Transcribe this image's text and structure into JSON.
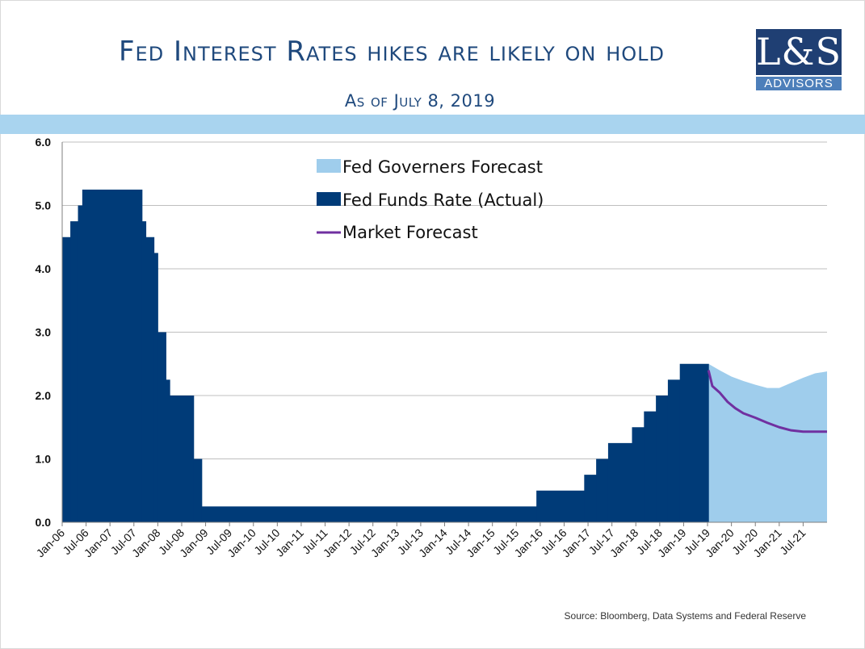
{
  "slide": {
    "title": "Fed Interest Rates hikes are likely on hold",
    "subtitle": "As of July 8, 2019",
    "source": "Source:  Bloomberg, Data Systems and Federal Reserve"
  },
  "logo": {
    "main": "L&S",
    "sub": "ADVISORS"
  },
  "colors": {
    "actual": "#003b78",
    "governors": "#9fcdec",
    "market": "#7030a0",
    "title": "#1f497d",
    "band": "#a9d4ef"
  },
  "chart_data": {
    "type": "bar",
    "title": "Fed Interest Rates hikes are likely on hold",
    "xlabel": "",
    "ylabel": "",
    "ylim": [
      0,
      6
    ],
    "yticks": [
      "0.0",
      "1.0",
      "2.0",
      "3.0",
      "4.0",
      "5.0",
      "6.0"
    ],
    "x_range_years": [
      2006.0,
      2022.0
    ],
    "legend_position": "top-center",
    "grid": true,
    "x_tick_labels": [
      "Jan-06",
      "Jul-06",
      "Jan-07",
      "Jul-07",
      "Jan-08",
      "Jul-08",
      "Jan-09",
      "Jul-09",
      "Jan-10",
      "Jul-10",
      "Jan-11",
      "Jul-11",
      "Jan-12",
      "Jul-12",
      "Jan-13",
      "Jul-13",
      "Jan-14",
      "Jul-14",
      "Jan-15",
      "Jul-15",
      "Jan-16",
      "Jul-16",
      "Jan-17",
      "Jul-17",
      "Jan-18",
      "Jul-18",
      "Jan-19",
      "Jul-19",
      "Jan-20",
      "Jul-20",
      "Jan-21",
      "Jul-21"
    ],
    "series": [
      {
        "name": "Fed Governers Forecast",
        "kind": "area",
        "points": [
          [
            2019.52,
            2.5
          ],
          [
            2019.75,
            2.4
          ],
          [
            2020.0,
            2.3
          ],
          [
            2020.25,
            2.23
          ],
          [
            2020.5,
            2.17
          ],
          [
            2020.75,
            2.12
          ],
          [
            2021.0,
            2.12
          ],
          [
            2021.25,
            2.2
          ],
          [
            2021.5,
            2.28
          ],
          [
            2021.75,
            2.35
          ],
          [
            2022.0,
            2.38
          ]
        ]
      },
      {
        "name": "Fed Funds Rate (Actual)",
        "kind": "step",
        "points": [
          [
            2006.0,
            4.5
          ],
          [
            2006.17,
            4.75
          ],
          [
            2006.33,
            5.0
          ],
          [
            2006.42,
            5.25
          ],
          [
            2007.67,
            4.75
          ],
          [
            2007.75,
            4.5
          ],
          [
            2007.92,
            4.25
          ],
          [
            2008.0,
            3.0
          ],
          [
            2008.17,
            2.25
          ],
          [
            2008.25,
            2.0
          ],
          [
            2008.75,
            1.0
          ],
          [
            2008.92,
            0.25
          ],
          [
            2015.92,
            0.5
          ],
          [
            2016.92,
            0.75
          ],
          [
            2017.17,
            1.0
          ],
          [
            2017.42,
            1.25
          ],
          [
            2017.92,
            1.5
          ],
          [
            2018.17,
            1.75
          ],
          [
            2018.42,
            2.0
          ],
          [
            2018.67,
            2.25
          ],
          [
            2018.92,
            2.5
          ],
          [
            2019.52,
            2.5
          ]
        ]
      },
      {
        "name": "Market Forecast",
        "kind": "line",
        "points": [
          [
            2019.52,
            2.4
          ],
          [
            2019.6,
            2.15
          ],
          [
            2019.75,
            2.05
          ],
          [
            2019.92,
            1.9
          ],
          [
            2020.08,
            1.8
          ],
          [
            2020.25,
            1.72
          ],
          [
            2020.5,
            1.65
          ],
          [
            2020.75,
            1.57
          ],
          [
            2021.0,
            1.5
          ],
          [
            2021.25,
            1.45
          ],
          [
            2021.5,
            1.43
          ],
          [
            2021.75,
            1.43
          ],
          [
            2022.0,
            1.43
          ]
        ]
      }
    ],
    "legend": [
      "Fed Governers Forecast",
      "Fed Funds Rate (Actual)",
      "Market Forecast"
    ]
  }
}
